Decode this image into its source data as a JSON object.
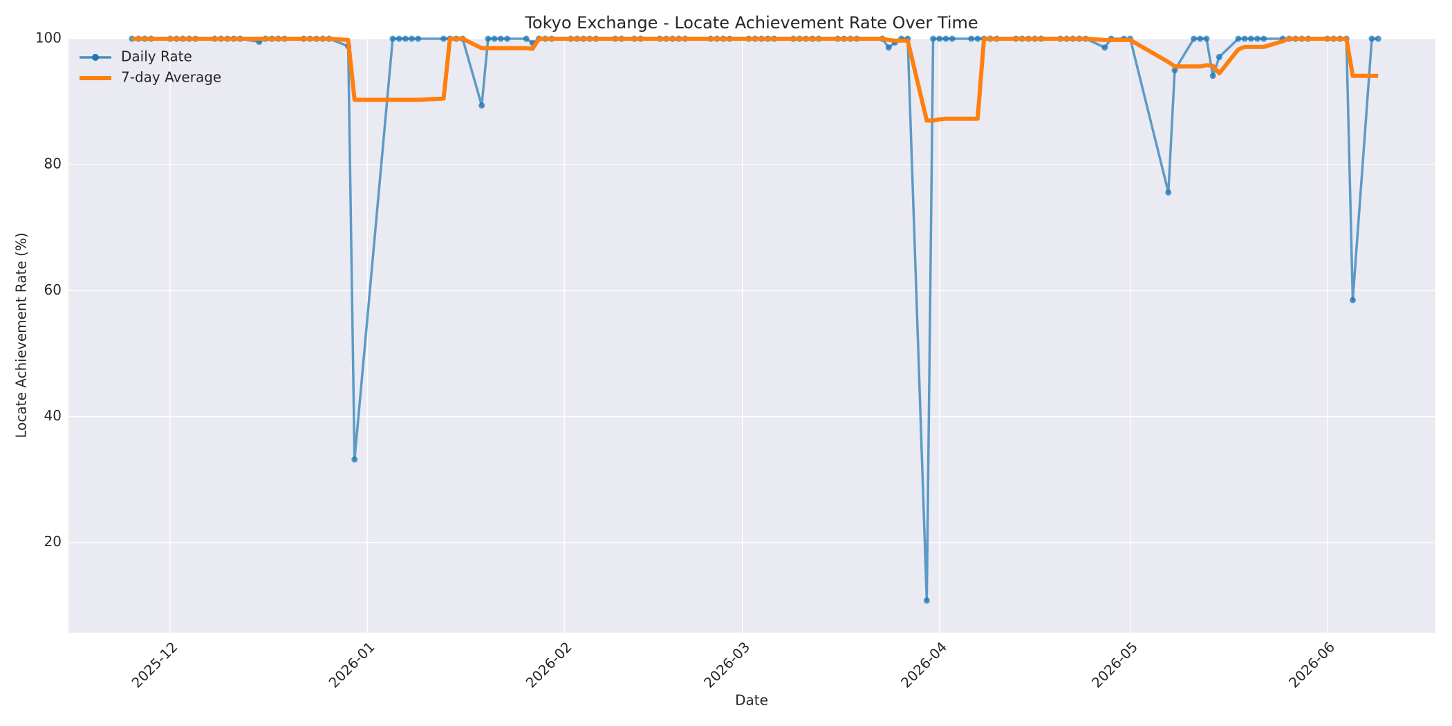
{
  "chart_data": {
    "type": "line",
    "title": "Tokyo Exchange - Locate Achievement Rate Over Time",
    "x_label": "Date",
    "y_label": "Locate Achievement Rate (%)",
    "x": [
      "2025-11-25",
      "2025-11-26",
      "2025-11-27",
      "2025-11-28",
      "2025-12-01",
      "2025-12-02",
      "2025-12-03",
      "2025-12-04",
      "2025-12-05",
      "2025-12-08",
      "2025-12-09",
      "2025-12-10",
      "2025-12-11",
      "2025-12-12",
      "2025-12-15",
      "2025-12-16",
      "2025-12-17",
      "2025-12-18",
      "2025-12-19",
      "2025-12-22",
      "2025-12-23",
      "2025-12-24",
      "2025-12-25",
      "2025-12-26",
      "2025-12-29",
      "2025-12-30",
      "2026-01-05",
      "2026-01-06",
      "2026-01-07",
      "2026-01-08",
      "2026-01-09",
      "2026-01-13",
      "2026-01-14",
      "2026-01-15",
      "2026-01-16",
      "2026-01-19",
      "2026-01-20",
      "2026-01-21",
      "2026-01-22",
      "2026-01-23",
      "2026-01-26",
      "2026-01-27",
      "2026-01-28",
      "2026-01-29",
      "2026-01-30",
      "2026-02-02",
      "2026-02-03",
      "2026-02-04",
      "2026-02-05",
      "2026-02-06",
      "2026-02-09",
      "2026-02-10",
      "2026-02-12",
      "2026-02-13",
      "2026-02-16",
      "2026-02-17",
      "2026-02-18",
      "2026-02-19",
      "2026-02-20",
      "2026-02-24",
      "2026-02-25",
      "2026-02-26",
      "2026-02-27",
      "2026-03-02",
      "2026-03-03",
      "2026-03-04",
      "2026-03-05",
      "2026-03-06",
      "2026-03-09",
      "2026-03-10",
      "2026-03-11",
      "2026-03-12",
      "2026-03-13",
      "2026-03-16",
      "2026-03-17",
      "2026-03-18",
      "2026-03-19",
      "2026-03-23",
      "2026-03-24",
      "2026-03-25",
      "2026-03-26",
      "2026-03-27",
      "2026-03-30",
      "2026-03-31",
      "2026-04-01",
      "2026-04-02",
      "2026-04-03",
      "2026-04-06",
      "2026-04-07",
      "2026-04-08",
      "2026-04-09",
      "2026-04-10",
      "2026-04-13",
      "2026-04-14",
      "2026-04-15",
      "2026-04-16",
      "2026-04-17",
      "2026-04-20",
      "2026-04-21",
      "2026-04-22",
      "2026-04-23",
      "2026-04-24",
      "2026-04-27",
      "2026-04-28",
      "2026-04-30",
      "2026-05-01",
      "2026-05-07",
      "2026-05-08",
      "2026-05-11",
      "2026-05-12",
      "2026-05-13",
      "2026-05-14",
      "2026-05-15",
      "2026-05-18",
      "2026-05-19",
      "2026-05-20",
      "2026-05-21",
      "2026-05-22",
      "2026-05-25",
      "2026-05-26",
      "2026-05-27",
      "2026-05-28",
      "2026-05-29",
      "2026-06-01",
      "2026-06-02",
      "2026-06-03",
      "2026-06-04",
      "2026-06-05",
      "2026-06-08",
      "2026-06-09"
    ],
    "series": [
      {
        "name": "Daily Rate",
        "color": "#1f77b4",
        "marker": true,
        "values": [
          100,
          100,
          100,
          100,
          100,
          100,
          100,
          100,
          100,
          100,
          100,
          100,
          100,
          100,
          99.5,
          100,
          100,
          100,
          100,
          100,
          100,
          100,
          100,
          100,
          98.8,
          33.2,
          100,
          100,
          100,
          100,
          100,
          100,
          100,
          100,
          100,
          89.4,
          100,
          100,
          100,
          100,
          100,
          99.3,
          100,
          100,
          100,
          100,
          100,
          100,
          100,
          100,
          100,
          100,
          100,
          100,
          100,
          100,
          100,
          100,
          100,
          100,
          100,
          100,
          100,
          100,
          100,
          100,
          100,
          100,
          100,
          100,
          100,
          100,
          100,
          100,
          100,
          100,
          100,
          100,
          98.6,
          99.4,
          100,
          100,
          10.8,
          100,
          100,
          100,
          100,
          100,
          100,
          100,
          100,
          100,
          100,
          100,
          100,
          100,
          100,
          100,
          100,
          100,
          100,
          100,
          98.6,
          100,
          100,
          100,
          75.6,
          95.0,
          100,
          100,
          100,
          94.1,
          97.1,
          100,
          100,
          100,
          100,
          100,
          100,
          100,
          100,
          100,
          100,
          100,
          100,
          100,
          100,
          58.5,
          100,
          100
        ]
      },
      {
        "name": "7-day Average",
        "color": "#ff7f0e",
        "marker": false,
        "values": [
          100,
          100,
          100,
          100,
          100,
          100,
          100,
          100,
          100,
          100,
          100,
          100,
          100,
          100,
          100,
          100,
          100,
          100,
          100,
          100,
          100,
          100,
          100,
          100,
          99.8,
          90.3,
          90.3,
          90.3,
          90.3,
          90.3,
          90.3,
          90.5,
          100,
          100,
          100,
          98.5,
          98.5,
          98.5,
          98.5,
          98.5,
          98.5,
          98.4,
          100,
          100,
          100,
          100,
          100,
          100,
          100,
          100,
          100,
          100,
          100,
          100,
          100,
          100,
          100,
          100,
          100,
          100,
          100,
          100,
          100,
          100,
          100,
          100,
          100,
          100,
          100,
          100,
          100,
          100,
          100,
          100,
          100,
          100,
          100,
          100,
          99.8,
          99.7,
          99.7,
          99.7,
          87.0,
          87.0,
          87.2,
          87.3,
          87.3,
          87.3,
          87.3,
          100,
          100,
          100,
          100,
          100,
          100,
          100,
          100,
          100,
          100,
          100,
          100,
          100,
          99.8,
          99.8,
          99.8,
          99.8,
          96.3,
          95.6,
          95.6,
          95.6,
          95.8,
          95.7,
          94.5,
          98.3,
          98.7,
          98.7,
          98.7,
          98.7,
          99.6,
          100,
          100,
          100,
          100,
          100,
          100,
          100,
          100,
          94.1,
          94.1,
          94.1
        ]
      }
    ],
    "xlim": [
      "2025-11-15",
      "2026-06-18"
    ],
    "xticks": [
      {
        "value": "2025-12-01",
        "label": "2025-12"
      },
      {
        "value": "2026-01-01",
        "label": "2026-01"
      },
      {
        "value": "2026-02-01",
        "label": "2026-02"
      },
      {
        "value": "2026-03-01",
        "label": "2026-03"
      },
      {
        "value": "2026-04-01",
        "label": "2026-04"
      },
      {
        "value": "2026-05-01",
        "label": "2026-05"
      },
      {
        "value": "2026-06-01",
        "label": "2026-06"
      }
    ],
    "ylim": [
      5.7,
      100
    ],
    "yticks": [
      20,
      40,
      60,
      80,
      100
    ],
    "grid": true,
    "legend": "upper left"
  }
}
